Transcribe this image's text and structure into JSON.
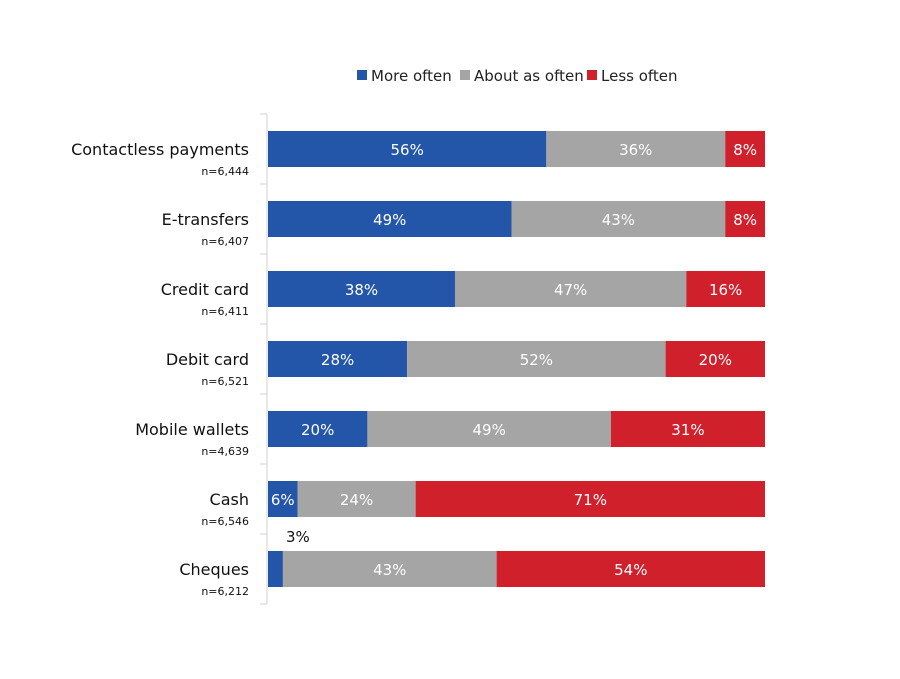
{
  "chart_data": {
    "type": "bar",
    "orientation": "horizontal",
    "stacked": true,
    "legend_position": "top",
    "grid": false,
    "categories": [
      "Contactless payments",
      "E-transfers",
      "Credit card",
      "Debit card",
      "Mobile wallets",
      "Cash",
      "Cheques"
    ],
    "sample_sizes": [
      "n=6,444",
      "n=6,407",
      "n=6,411",
      "n=6,521",
      "n=4,639",
      "n=6,546",
      "n=6,212"
    ],
    "series": [
      {
        "name": "More often",
        "color": "#2356A8",
        "values": [
          56,
          49,
          38,
          28,
          20,
          6,
          3
        ]
      },
      {
        "name": "About as often",
        "color": "#A5A5A5",
        "values": [
          36,
          43,
          47,
          52,
          49,
          24,
          43
        ]
      },
      {
        "name": "Less often",
        "color": "#D0202C",
        "values": [
          8,
          8,
          16,
          20,
          31,
          71,
          54
        ]
      }
    ]
  }
}
